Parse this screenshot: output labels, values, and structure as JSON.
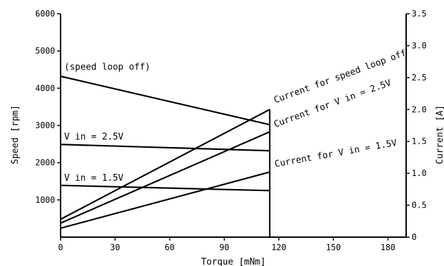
{
  "chart_data": {
    "type": "line",
    "xlabel": "Torque [mNm]",
    "ylabel_left": "Speed [rpm]",
    "ylabel_right": "Current [A]",
    "xlim": [
      0,
      190
    ],
    "ylim_left": [
      0,
      6000
    ],
    "ylim_right": [
      0,
      3.5
    ],
    "x_ticks": [
      0,
      30,
      60,
      90,
      120,
      150,
      180
    ],
    "y_left_ticks": [
      1000,
      2000,
      3000,
      4000,
      5000,
      6000
    ],
    "y_right_ticks": [
      0,
      0.5,
      1.0,
      1.5,
      2.0,
      2.5,
      3.0,
      3.5
    ],
    "y_right_tick_labels": [
      "0",
      "0.5",
      "1.0",
      "1.5",
      "2.0",
      "2.5",
      "3.0",
      "3.5"
    ],
    "cutoff_x": 115,
    "series": [
      {
        "axis": "left",
        "x": [
          0,
          115
        ],
        "y": [
          4320,
          3020
        ]
      },
      {
        "axis": "left",
        "x": [
          0,
          115
        ],
        "y": [
          2490,
          2320
        ]
      },
      {
        "axis": "left",
        "x": [
          0,
          115
        ],
        "y": [
          1390,
          1250
        ]
      },
      {
        "axis": "right",
        "x": [
          0,
          115
        ],
        "y": [
          0.28,
          2.0
        ]
      },
      {
        "axis": "right",
        "x": [
          0,
          115
        ],
        "y": [
          0.22,
          1.65
        ]
      },
      {
        "axis": "right",
        "x": [
          0,
          115
        ],
        "y": [
          0.14,
          1.02
        ]
      }
    ],
    "annotations": [
      {
        "text": "(speed loop off)",
        "x": 2,
        "y": 4500,
        "axis": "left",
        "rotate": 0
      },
      {
        "text": "V in = 2.5V",
        "x": 2,
        "y": 2620,
        "axis": "left",
        "rotate": 0
      },
      {
        "text": "V in = 1.5V",
        "x": 2,
        "y": 1510,
        "axis": "left",
        "rotate": 0
      },
      {
        "text": "Current for speed loop off",
        "x": 118,
        "y": 2.1,
        "axis": "right",
        "rotate": -20
      },
      {
        "text": "Current for V in = 2.5V",
        "x": 118,
        "y": 1.72,
        "axis": "right",
        "rotate": -20
      },
      {
        "text": "Current for V in = 1.5V",
        "x": 118,
        "y": 1.1,
        "axis": "right",
        "rotate": -10
      }
    ]
  }
}
